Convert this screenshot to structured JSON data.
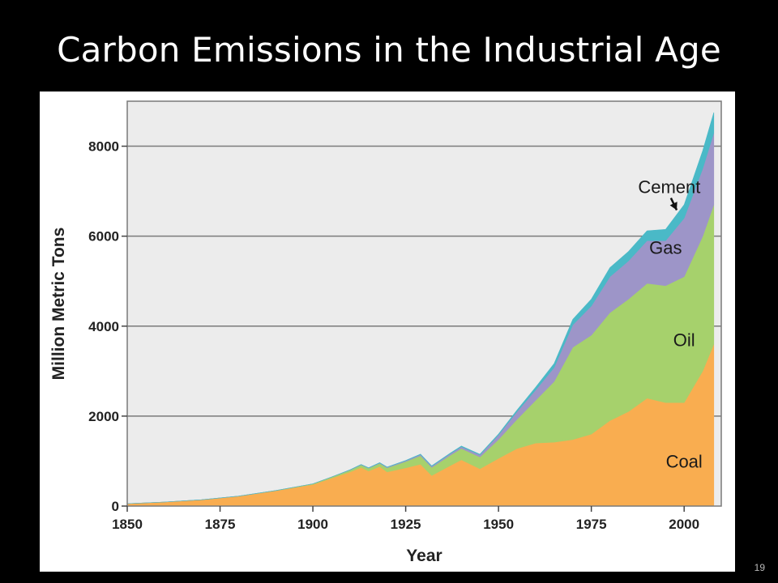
{
  "slide": {
    "title": "Carbon Emissions in the Industrial Age",
    "page_number": "19"
  },
  "chart_data": {
    "type": "area",
    "stacked": true,
    "title": "",
    "xlabel": "Year",
    "ylabel": "Million Metric Tons",
    "xlim": [
      1850,
      2010
    ],
    "ylim": [
      0,
      9000
    ],
    "x_ticks": [
      1850,
      1875,
      1900,
      1925,
      1950,
      1975,
      2000
    ],
    "y_ticks": [
      0,
      2000,
      4000,
      6000,
      8000
    ],
    "grid": "horizontal",
    "legend": "none",
    "background": "#ececec",
    "x": [
      1850,
      1860,
      1870,
      1880,
      1890,
      1900,
      1905,
      1910,
      1913,
      1915,
      1918,
      1920,
      1925,
      1929,
      1932,
      1937,
      1940,
      1945,
      1950,
      1955,
      1960,
      1965,
      1970,
      1975,
      1980,
      1985,
      1990,
      1995,
      2000,
      2005,
      2008
    ],
    "series": [
      {
        "name": "Coal",
        "color": "#f9ad50",
        "values": [
          54,
          90,
          140,
          220,
          340,
          480,
          620,
          760,
          860,
          780,
          880,
          760,
          850,
          930,
          680,
          900,
          1030,
          830,
          1060,
          1280,
          1400,
          1420,
          1480,
          1600,
          1900,
          2100,
          2400,
          2300,
          2300,
          3000,
          3600
        ]
      },
      {
        "name": "Oil",
        "color": "#a6d16c",
        "values": [
          0,
          0,
          0,
          2,
          5,
          15,
          25,
          40,
          55,
          60,
          70,
          90,
          140,
          190,
          180,
          230,
          250,
          260,
          420,
          650,
          950,
          1350,
          2050,
          2200,
          2400,
          2500,
          2550,
          2600,
          2800,
          3000,
          3100
        ]
      },
      {
        "name": "Gas",
        "color": "#9d95c8",
        "values": [
          0,
          0,
          0,
          0,
          0,
          0,
          2,
          5,
          7,
          8,
          10,
          12,
          18,
          25,
          25,
          35,
          40,
          50,
          100,
          170,
          230,
          310,
          500,
          650,
          800,
          850,
          950,
          1000,
          1300,
          1500,
          1600
        ]
      },
      {
        "name": "Cement",
        "color": "#4ab9c7",
        "values": [
          0,
          0,
          0,
          0,
          0,
          0,
          0,
          2,
          3,
          3,
          4,
          5,
          8,
          10,
          10,
          12,
          15,
          12,
          20,
          35,
          60,
          90,
          120,
          150,
          200,
          210,
          220,
          250,
          300,
          400,
          450
        ]
      }
    ],
    "annotations": [
      {
        "text": "Coal",
        "x": 2000,
        "y": 1000
      },
      {
        "text": "Oil",
        "x": 2000,
        "y": 3700
      },
      {
        "text": "Gas",
        "x": 1995,
        "y": 5750
      },
      {
        "text": "Cement",
        "x": 1996,
        "y": 7100,
        "arrow_to": {
          "x": 1998,
          "y": 6580
        }
      }
    ]
  }
}
